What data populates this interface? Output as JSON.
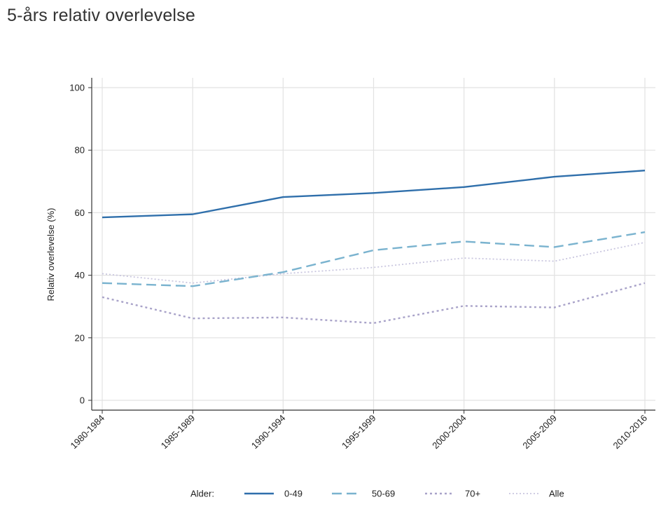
{
  "title": "5-års relativ overlevelse",
  "chart_data": {
    "type": "line",
    "categories": [
      "1980-1984",
      "1985-1989",
      "1990-1994",
      "1995-1999",
      "2000-2004",
      "2005-2009",
      "2010-2016"
    ],
    "ylabel": "Relativ overlevelse (%)",
    "xlabel": "",
    "ylim": [
      0,
      100
    ],
    "yticks": [
      0,
      20,
      40,
      60,
      80,
      100
    ],
    "grid": true,
    "legend": {
      "title": "Alder:",
      "placement": "bottom"
    },
    "series": [
      {
        "name": "0-49",
        "values": [
          58.5,
          59.5,
          65,
          66.3,
          68.2,
          71.5,
          73.5
        ],
        "color": "#2f6fab",
        "style": "solid"
      },
      {
        "name": "50-69",
        "values": [
          37.5,
          36.5,
          41,
          48,
          50.8,
          49,
          53.8
        ],
        "color": "#7ab3cf",
        "style": "dashed"
      },
      {
        "name": "70+",
        "values": [
          33,
          26.2,
          26.5,
          24.7,
          30.2,
          29.7,
          37.5
        ],
        "color": "#a9a3c9",
        "style": "dotted"
      },
      {
        "name": "Alle",
        "values": [
          40.5,
          37.5,
          40.5,
          42.5,
          45.5,
          44.5,
          50.5
        ],
        "color": "#c9c6df",
        "style": "fine-dotted"
      }
    ]
  }
}
